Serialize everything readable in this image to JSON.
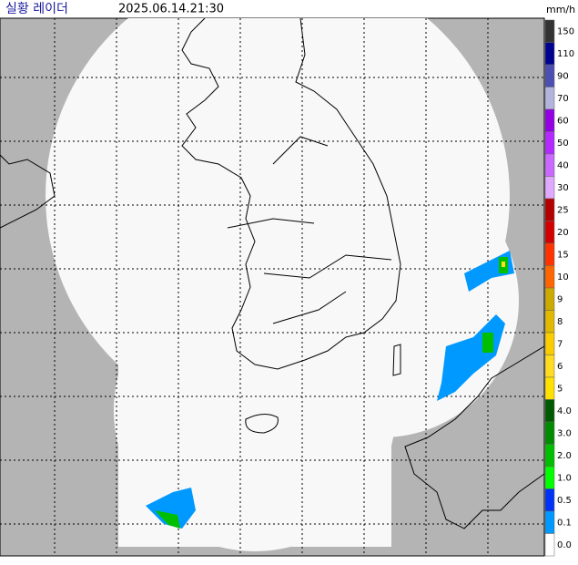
{
  "header": {
    "title": "실황 레이더",
    "time": "2025.06.14.21:30"
  },
  "legend": {
    "unit": "mm/h",
    "items": [
      {
        "label": "150",
        "color": "#333333"
      },
      {
        "label": "110",
        "color": "#000390"
      },
      {
        "label": "90",
        "color": "#4c4eb1"
      },
      {
        "label": "70",
        "color": "#b3b4de"
      },
      {
        "label": "60",
        "color": "#9300e4"
      },
      {
        "label": "50",
        "color": "#b329ff"
      },
      {
        "label": "40",
        "color": "#c969ff"
      },
      {
        "label": "30",
        "color": "#e0a9ff"
      },
      {
        "label": "25",
        "color": "#b40000"
      },
      {
        "label": "20",
        "color": "#d20000"
      },
      {
        "label": "15",
        "color": "#ff3200"
      },
      {
        "label": "10",
        "color": "#ff6600"
      },
      {
        "label": "9",
        "color": "#ccaa00"
      },
      {
        "label": "8",
        "color": "#e0b900"
      },
      {
        "label": "7",
        "color": "#f9cd00"
      },
      {
        "label": "6",
        "color": "#ffdc1f"
      },
      {
        "label": "5",
        "color": "#ffe100"
      },
      {
        "label": "4.0",
        "color": "#005a00"
      },
      {
        "label": "3.0",
        "color": "#008c00"
      },
      {
        "label": "2.0",
        "color": "#00be00"
      },
      {
        "label": "1.0",
        "color": "#00ff00"
      },
      {
        "label": "0.5",
        "color": "#0033f5"
      },
      {
        "label": "0.1",
        "color": "#0099ff"
      },
      {
        "label": "0.0",
        "color": "#ffffff"
      }
    ]
  }
}
